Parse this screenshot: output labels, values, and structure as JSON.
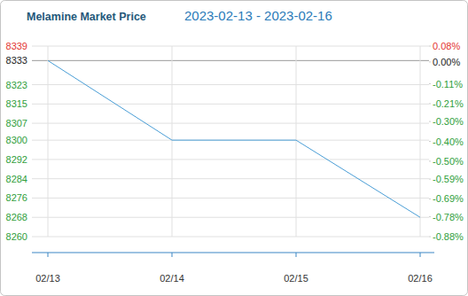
{
  "chart_data": {
    "type": "line",
    "title": "Melamine Market Price",
    "subtitle": "2023-02-13 - 2023-02-16",
    "categories": [
      "02/13",
      "02/14",
      "02/15",
      "02/16"
    ],
    "values": [
      8333,
      8300,
      8300,
      8268
    ],
    "color": "#4a9ed6",
    "ylim": [
      8260,
      8339
    ],
    "yticks": [
      8339,
      8333,
      8323,
      8315,
      8307,
      8300,
      8292,
      8284,
      8276,
      8268,
      8260
    ],
    "y2lim": [
      -0.88,
      0.08
    ],
    "y2ticks": [
      {
        "value": 0.08,
        "label": "0.08%"
      },
      {
        "value": 0,
        "label": "0.00%"
      },
      {
        "value": -0.11,
        "label": "-0.11%"
      },
      {
        "value": -0.21,
        "label": "-0.21%"
      },
      {
        "value": -0.3,
        "label": "-0.30%"
      },
      {
        "value": -0.4,
        "label": "-0.40%"
      },
      {
        "value": -0.5,
        "label": "-0.50%"
      },
      {
        "value": -0.59,
        "label": "-0.59%"
      },
      {
        "value": -0.69,
        "label": "-0.69%"
      },
      {
        "value": -0.78,
        "label": "-0.78%"
      },
      {
        "value": -0.88,
        "label": "-0.88%"
      }
    ],
    "grid": true
  }
}
